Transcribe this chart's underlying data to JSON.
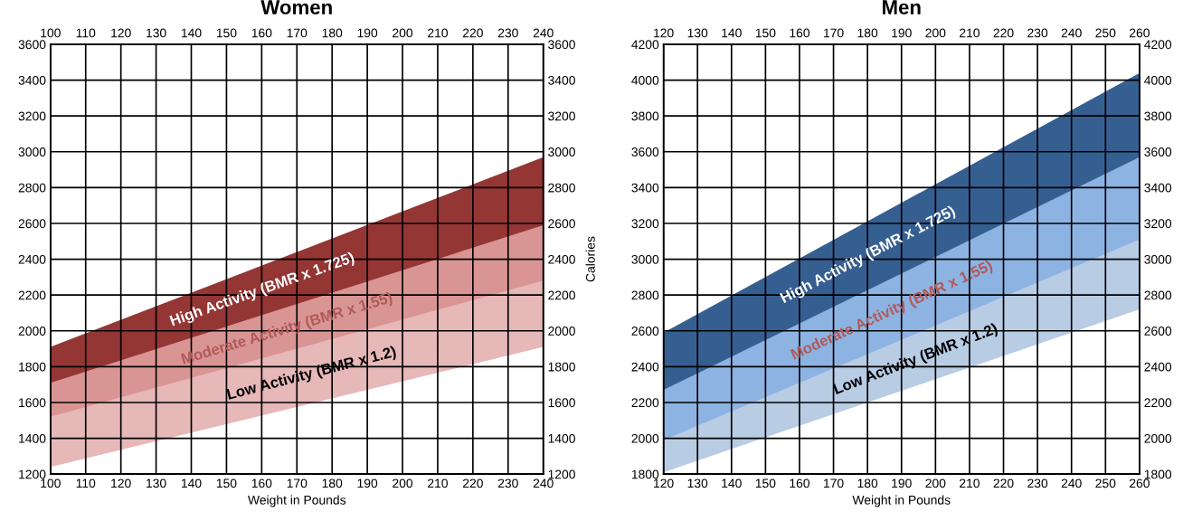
{
  "chart_data": [
    {
      "type": "area",
      "title": "Women",
      "xlabel": "Weight in Pounds",
      "y2label": "Calories",
      "x": [
        100,
        240
      ],
      "grid": true,
      "xlim": [
        100,
        240
      ],
      "xticks": [
        100,
        110,
        120,
        130,
        140,
        150,
        160,
        170,
        180,
        190,
        200,
        210,
        220,
        230,
        240
      ],
      "x2lim": [
        100,
        240
      ],
      "x2ticks": [
        100,
        110,
        120,
        130,
        140,
        150,
        160,
        170,
        180,
        190,
        200,
        210,
        220,
        230,
        240
      ],
      "ylim": [
        1200,
        3600
      ],
      "yticks": [
        1200,
        1400,
        1600,
        1800,
        2000,
        2200,
        2400,
        2600,
        2800,
        3000,
        3200,
        3400,
        3600
      ],
      "y2lim": [
        1200,
        3600
      ],
      "y2ticks": [
        1200,
        1400,
        1600,
        1800,
        2000,
        2200,
        2400,
        2600,
        2800,
        3000,
        3200,
        3400,
        3600
      ],
      "series": [
        {
          "name": "High Activity (BMR x 1.725)",
          "color": "#943634",
          "values": [
            1910,
            2970
          ]
        },
        {
          "name": "Moderate Activity (BMR x 1.55)",
          "color": "#d99594",
          "values": [
            1710,
            2590
          ]
        },
        {
          "name": "Low Activity (BMR x 1.2)",
          "color": "#e6b8b7",
          "values": [
            1520,
            2280
          ]
        },
        {
          "color": "#ffffff",
          "values": [
            1240,
            1910
          ]
        }
      ]
    },
    {
      "type": "area",
      "title": "Men",
      "xlabel": "Weight in Pounds",
      "x": [
        120,
        260
      ],
      "grid": true,
      "xlim": [
        120,
        260
      ],
      "xticks": [
        120,
        130,
        140,
        150,
        160,
        170,
        180,
        190,
        200,
        210,
        220,
        230,
        240,
        250,
        260
      ],
      "x2lim": [
        120,
        260
      ],
      "x2ticks": [
        120,
        130,
        140,
        150,
        160,
        170,
        180,
        190,
        200,
        210,
        220,
        230,
        240,
        250,
        260
      ],
      "ylim": [
        1800,
        4200
      ],
      "yticks": [
        1800,
        2000,
        2200,
        2400,
        2600,
        2800,
        3000,
        3200,
        3400,
        3600,
        3800,
        4000,
        4200
      ],
      "y2lim": [
        1800,
        4200
      ],
      "y2ticks": [
        1800,
        2000,
        2200,
        2400,
        2600,
        2800,
        3000,
        3200,
        3400,
        3600,
        3800,
        4000,
        4200
      ],
      "series": [
        {
          "name": "High Activity (BMR x 1.725)",
          "color": "#365f91",
          "values": [
            2590,
            4040
          ]
        },
        {
          "name": "Moderate Activity (BMR x 1.55)",
          "color": "#8db3e2",
          "values": [
            2270,
            3570
          ]
        },
        {
          "name": "Low Activity (BMR x 1.2)",
          "color": "#b8cce4",
          "values": [
            1990,
            3110
          ]
        },
        {
          "color": "#ffffff",
          "values": [
            1810,
            2720
          ]
        }
      ]
    }
  ]
}
